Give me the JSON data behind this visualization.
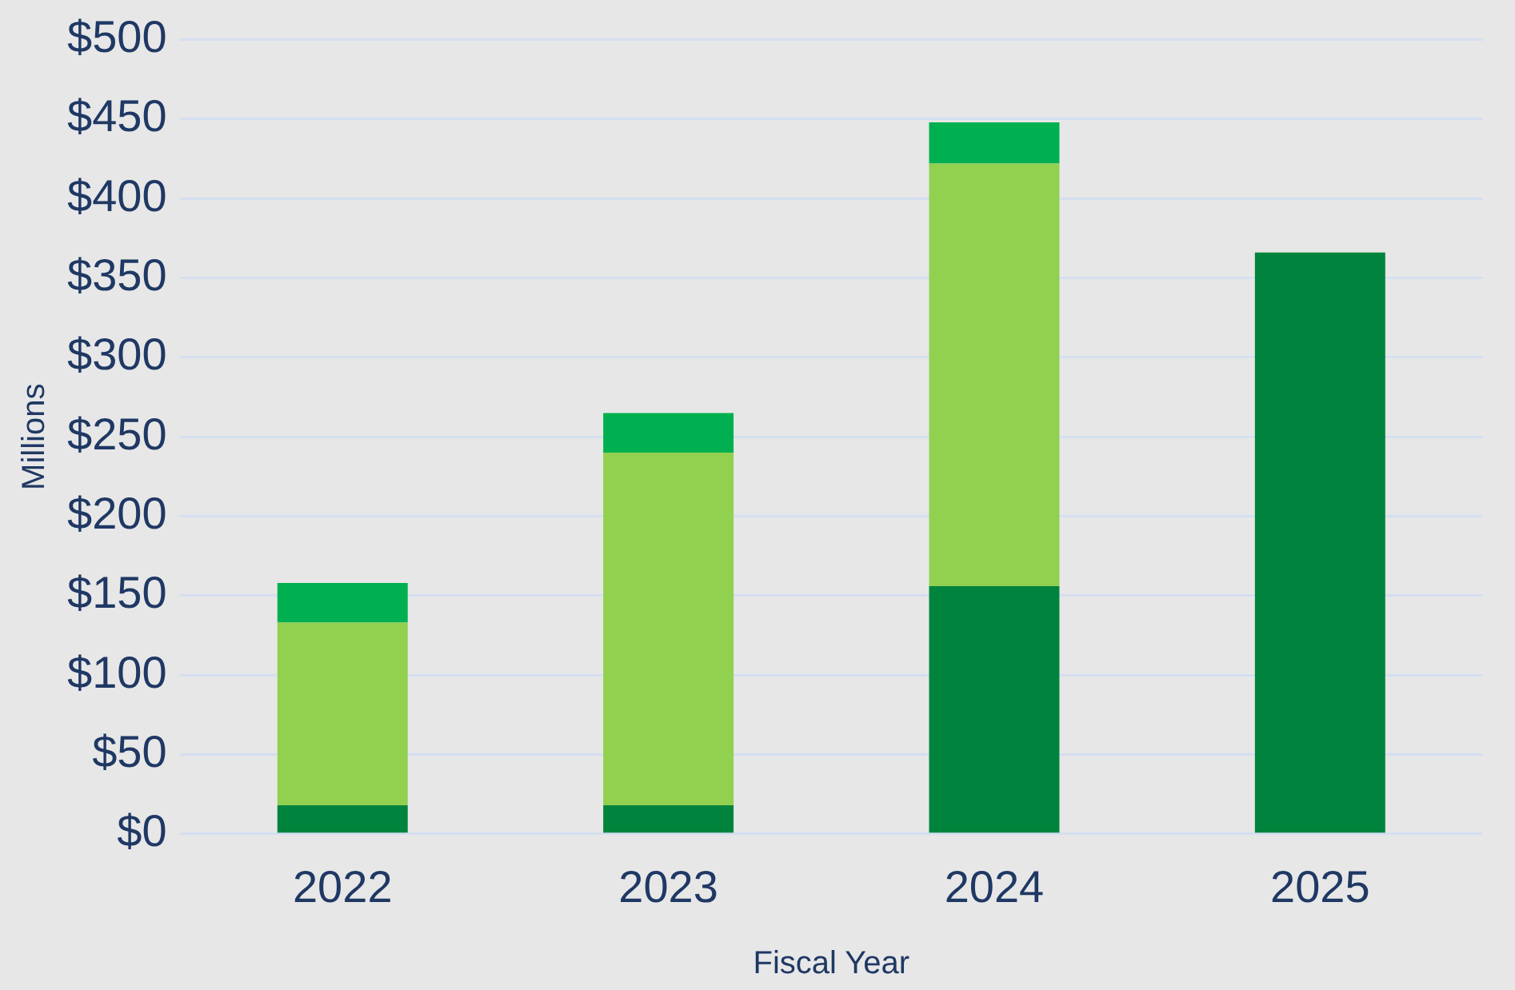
{
  "chart_data": {
    "type": "bar",
    "stacked": true,
    "xlabel": "Fiscal Year",
    "ylabel": "Millions",
    "categories": [
      "2022",
      "2023",
      "2024",
      "2025"
    ],
    "series": [
      {
        "color": "#00843d",
        "values": [
          18,
          18,
          156,
          366
        ]
      },
      {
        "color": "#92d050",
        "values": [
          115,
          222,
          266,
          null
        ]
      },
      {
        "color": "#00b050",
        "values": [
          25,
          25,
          26,
          null
        ]
      }
    ],
    "ylim": [
      0,
      500
    ],
    "yticks": [
      {
        "value": 0,
        "label": "$0"
      },
      {
        "value": 50,
        "label": "$50"
      },
      {
        "value": 100,
        "label": "$100"
      },
      {
        "value": 150,
        "label": "$150"
      },
      {
        "value": 200,
        "label": "$200"
      },
      {
        "value": 250,
        "label": "$250"
      },
      {
        "value": 300,
        "label": "$300"
      },
      {
        "value": 350,
        "label": "$350"
      },
      {
        "value": 400,
        "label": "$400"
      },
      {
        "value": 450,
        "label": "$450"
      },
      {
        "value": 500,
        "label": "$500"
      }
    ],
    "grid": "y",
    "legend": false
  }
}
